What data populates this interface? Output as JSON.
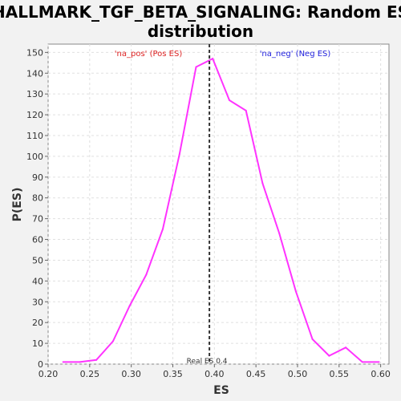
{
  "chart_data": {
    "type": "line",
    "title_line1": "HALLMARK_TGF_BETA_SIGNALING: Random ES",
    "title_line2": "distribution",
    "xlabel": "ES",
    "ylabel": "P(ES)",
    "xlim": [
      0.2,
      0.61
    ],
    "ylim": [
      0,
      154
    ],
    "xticks": [
      0.2,
      0.25,
      0.3,
      0.35,
      0.4,
      0.45,
      0.5,
      0.55,
      0.6
    ],
    "xtick_labels": [
      "0.20",
      "0.25",
      "0.30",
      "0.35",
      "0.40",
      "0.45",
      "0.50",
      "0.55",
      "0.60"
    ],
    "yticks": [
      0,
      10,
      20,
      30,
      40,
      50,
      60,
      70,
      80,
      90,
      100,
      110,
      120,
      130,
      140,
      150
    ],
    "ytick_labels": [
      "0",
      "10",
      "20",
      "30",
      "40",
      "50",
      "60",
      "70",
      "80",
      "90",
      "100",
      "110",
      "120",
      "130",
      "140",
      "150"
    ],
    "grid": true,
    "series": [
      {
        "color": "#ff33ff",
        "x": [
          0.218,
          0.238,
          0.258,
          0.278,
          0.298,
          0.318,
          0.338,
          0.358,
          0.378,
          0.398,
          0.418,
          0.438,
          0.458,
          0.478,
          0.498,
          0.518,
          0.538,
          0.558,
          0.578,
          0.598
        ],
        "y": [
          1,
          1,
          2,
          11,
          28,
          43,
          65,
          101,
          143,
          147,
          127,
          122,
          87,
          63,
          35,
          12,
          4,
          8,
          1,
          1
        ]
      }
    ],
    "marker": {
      "x": 0.394,
      "label": "Real ES 0.4",
      "color": "#333333"
    },
    "annotations": [
      {
        "text": "'na_pos' (Pos ES)",
        "color": "#dd2222"
      },
      {
        "text": "'na_neg' (Neg ES)",
        "color": "#2222dd"
      }
    ]
  }
}
